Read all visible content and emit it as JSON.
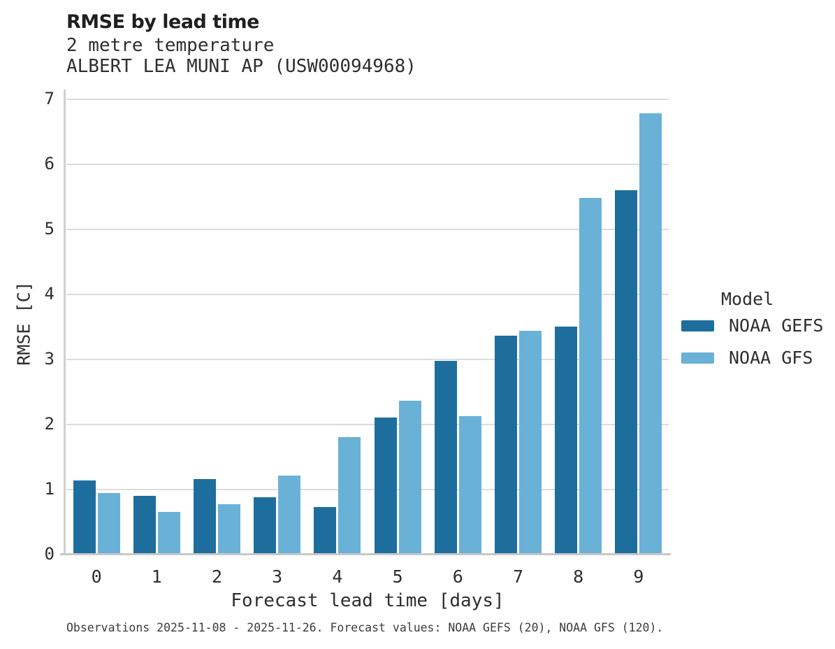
{
  "header": {
    "title": "RMSE by lead time",
    "subtitle": "2 metre temperature",
    "station": "ALBERT LEA MUNI AP (USW00094968)"
  },
  "chart_data": {
    "type": "bar",
    "title": "RMSE by lead time",
    "categories": [
      "0",
      "1",
      "2",
      "3",
      "4",
      "5",
      "6",
      "7",
      "8",
      "9"
    ],
    "series": [
      {
        "name": "NOAA GEFS",
        "color": "#1d6e9d",
        "values": [
          1.14,
          0.9,
          1.16,
          0.88,
          0.73,
          2.11,
          2.98,
          3.37,
          3.51,
          5.6
        ]
      },
      {
        "name": "NOAA GFS",
        "color": "#6ab1d8",
        "values": [
          0.95,
          0.66,
          0.77,
          1.22,
          1.81,
          2.37,
          2.13,
          3.44,
          5.48,
          6.78
        ]
      }
    ],
    "xlabel": "Forecast lead time [days]",
    "ylabel": "RMSE [C]",
    "ylim": [
      0,
      7
    ],
    "yticks": [
      0,
      1,
      2,
      3,
      4,
      5,
      6,
      7
    ],
    "grid": "horizontal",
    "legend_title": "Model",
    "legend_position": "right"
  },
  "footnote": "Observations 2025-11-08 - 2025-11-26. Forecast values: NOAA GEFS (20), NOAA GFS (120)."
}
